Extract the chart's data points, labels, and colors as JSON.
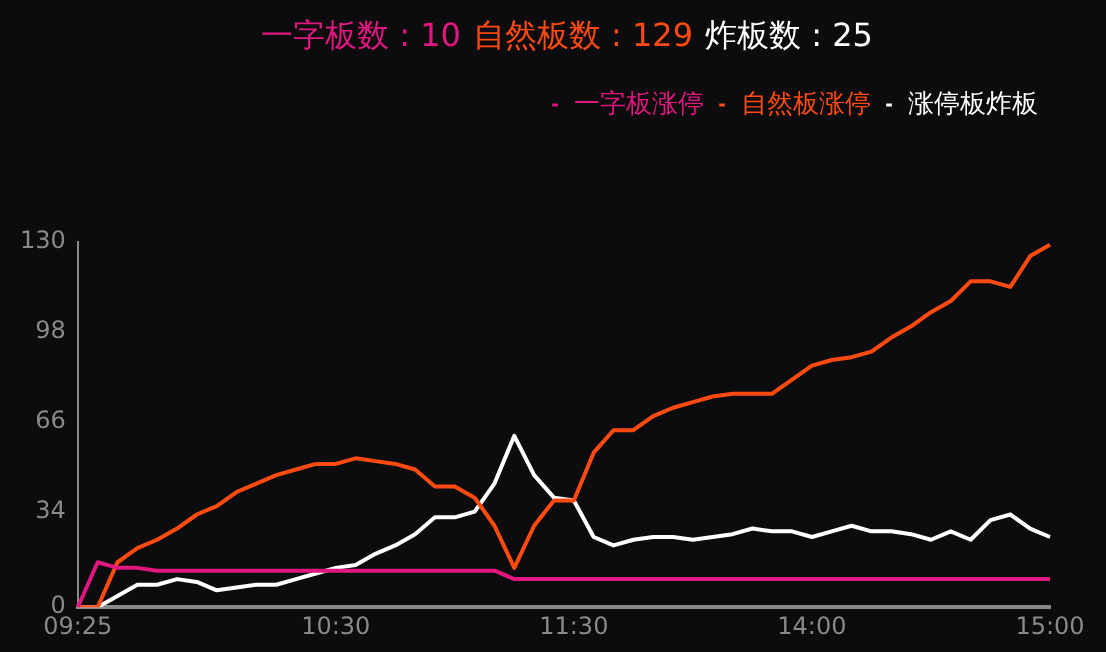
{
  "chart_data": {
    "type": "line",
    "annotations": [
      "一字板数 : 10",
      "自然板数 : 129",
      "炸板数 : 25"
    ],
    "categories": [
      "09:25",
      null,
      null,
      null,
      null,
      null,
      null,
      null,
      null,
      null,
      null,
      null,
      null,
      "10:30",
      null,
      null,
      null,
      null,
      null,
      null,
      null,
      null,
      null,
      null,
      null,
      "11:30",
      null,
      null,
      null,
      null,
      null,
      null,
      null,
      null,
      null,
      null,
      null,
      "14:00",
      null,
      null,
      null,
      null,
      null,
      null,
      null,
      null,
      null,
      null,
      null,
      "15:00"
    ],
    "series": [
      {
        "name": "一字板涨停",
        "color": "#e0177f",
        "values": [
          0,
          16,
          14,
          14,
          13,
          13,
          13,
          13,
          13,
          13,
          13,
          13,
          13,
          13,
          13,
          13,
          13,
          13,
          13,
          13,
          13,
          13,
          10,
          10,
          10,
          10,
          10,
          10,
          10,
          10,
          10,
          10,
          10,
          10,
          10,
          10,
          10,
          10,
          10,
          10,
          10,
          10,
          10,
          10,
          10,
          10,
          10,
          10,
          10,
          10
        ]
      },
      {
        "name": "自然板涨停",
        "color": "#ff4a12",
        "values": [
          0,
          0,
          16,
          21,
          24,
          28,
          33,
          36,
          41,
          44,
          47,
          49,
          51,
          51,
          53,
          52,
          51,
          49,
          43,
          43,
          39,
          29,
          14,
          29,
          38,
          38,
          55,
          63,
          63,
          68,
          71,
          73,
          75,
          76,
          76,
          76,
          81,
          86,
          88,
          89,
          91,
          96,
          100,
          105,
          109,
          116,
          116,
          114,
          125,
          129
        ]
      },
      {
        "name": "涨停板炸板",
        "color": "#ffffff",
        "values": [
          0,
          0,
          4,
          8,
          8,
          10,
          9,
          6,
          7,
          8,
          8,
          10,
          12,
          14,
          15,
          19,
          22,
          26,
          32,
          32,
          34,
          44,
          61,
          47,
          39,
          38,
          25,
          22,
          24,
          25,
          25,
          24,
          25,
          26,
          28,
          27,
          27,
          25,
          27,
          29,
          27,
          27,
          26,
          24,
          27,
          24,
          31,
          33,
          28,
          25
        ]
      }
    ],
    "ylim": [
      0,
      130
    ],
    "yticks": [
      0,
      34,
      66,
      98,
      130
    ],
    "grid": false,
    "legend": "top right",
    "marker": "none",
    "line_style": "solid"
  }
}
